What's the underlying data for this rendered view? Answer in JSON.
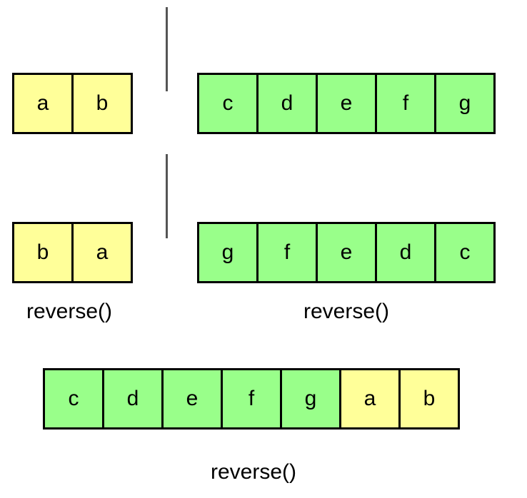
{
  "colors": {
    "yellow": "#ffff99",
    "green": "#99ff8a",
    "divider": "#555555",
    "border": "#000000"
  },
  "step1": {
    "left": [
      {
        "text": "a",
        "color": "yellow"
      },
      {
        "text": "b",
        "color": "yellow"
      }
    ],
    "right": [
      {
        "text": "c",
        "color": "green"
      },
      {
        "text": "d",
        "color": "green"
      },
      {
        "text": "e",
        "color": "green"
      },
      {
        "text": "f",
        "color": "green"
      },
      {
        "text": "g",
        "color": "green"
      }
    ]
  },
  "step2": {
    "left": [
      {
        "text": "b",
        "color": "yellow"
      },
      {
        "text": "a",
        "color": "yellow"
      }
    ],
    "right": [
      {
        "text": "g",
        "color": "green"
      },
      {
        "text": "f",
        "color": "green"
      },
      {
        "text": "e",
        "color": "green"
      },
      {
        "text": "d",
        "color": "green"
      },
      {
        "text": "c",
        "color": "green"
      }
    ],
    "left_caption": "reverse()",
    "right_caption": "reverse()"
  },
  "step3": {
    "cells": [
      {
        "text": "c",
        "color": "green"
      },
      {
        "text": "d",
        "color": "green"
      },
      {
        "text": "e",
        "color": "green"
      },
      {
        "text": "f",
        "color": "green"
      },
      {
        "text": "g",
        "color": "green"
      },
      {
        "text": "a",
        "color": "yellow"
      },
      {
        "text": "b",
        "color": "yellow"
      }
    ],
    "caption": "reverse()"
  }
}
